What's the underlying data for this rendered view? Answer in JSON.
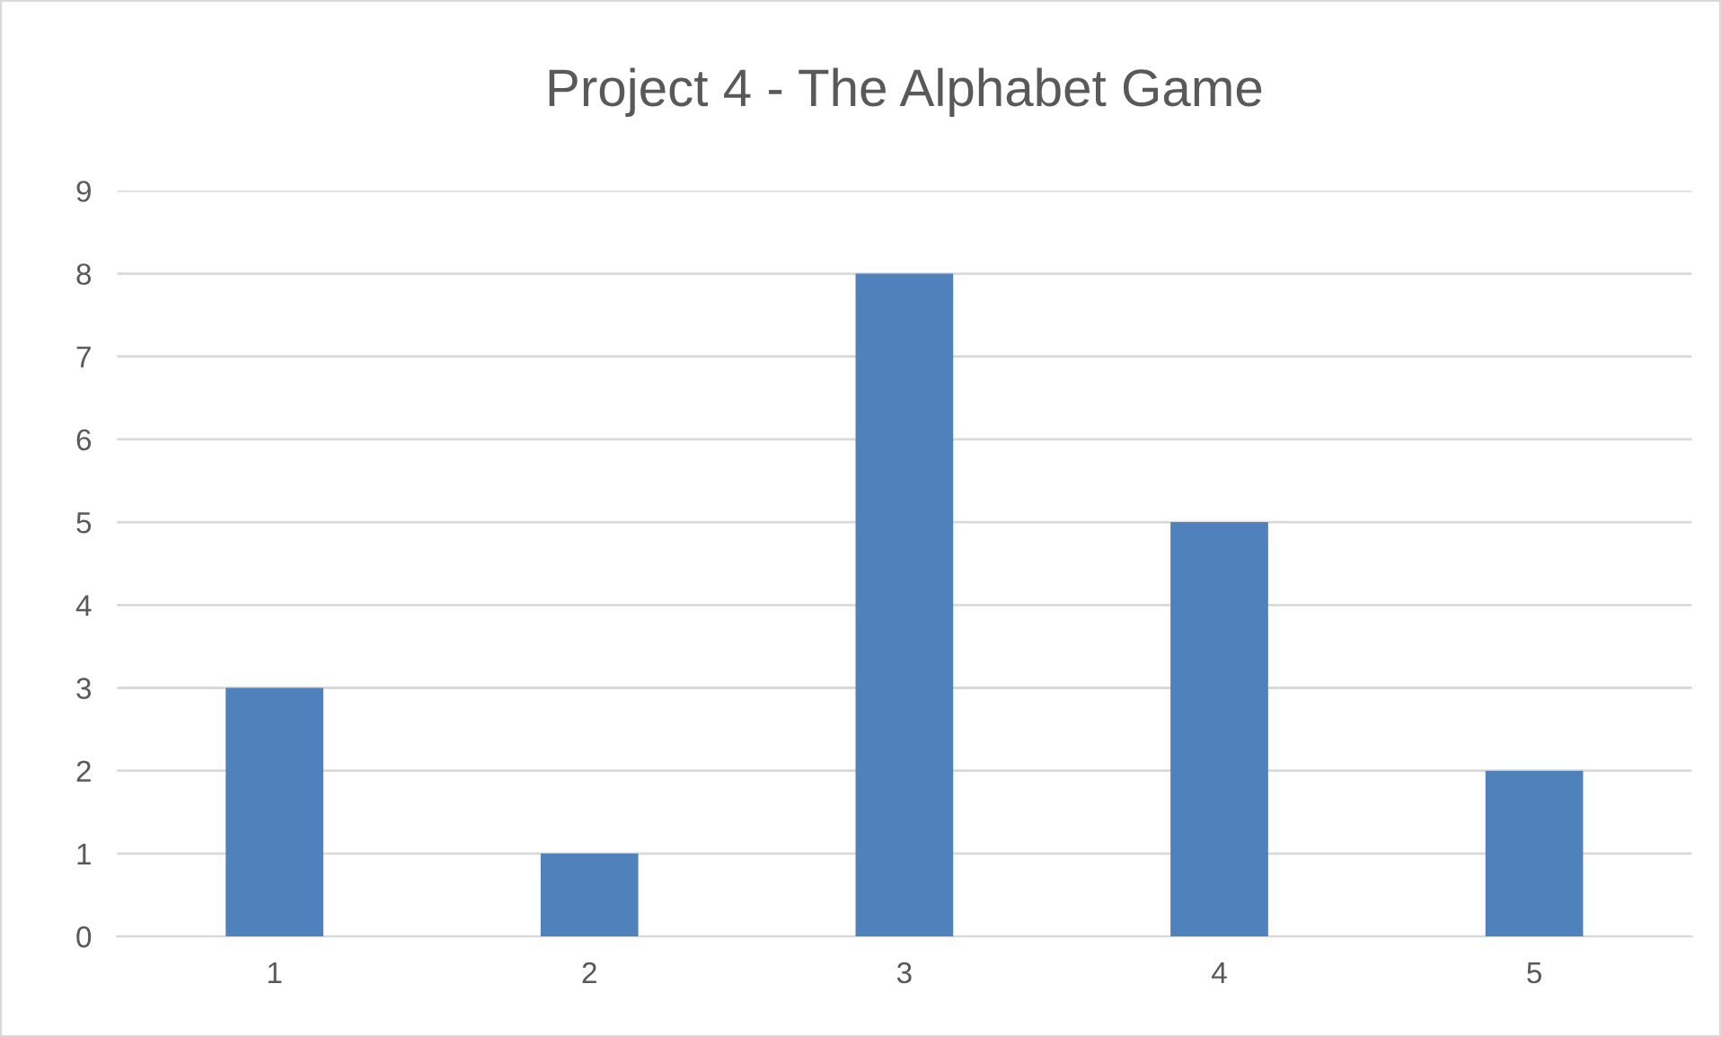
{
  "chart_data": {
    "type": "bar",
    "title": "Project 4 - The Alphabet Game",
    "categories": [
      "1",
      "2",
      "3",
      "4",
      "5"
    ],
    "values": [
      3,
      1,
      8,
      5,
      2
    ],
    "color": "#4f81bd",
    "ylim": [
      0,
      9
    ],
    "yticks": [
      0,
      1,
      2,
      3,
      4,
      5,
      6,
      7,
      8,
      9
    ],
    "grid": "y"
  }
}
